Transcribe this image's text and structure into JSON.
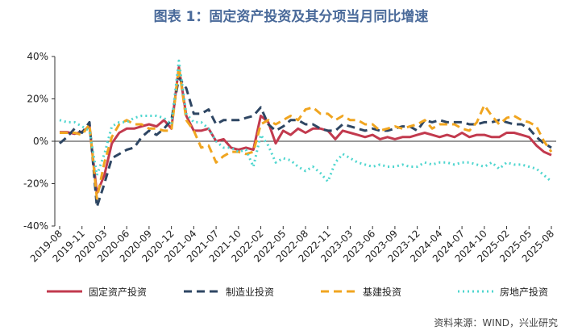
{
  "chart_data": {
    "type": "line",
    "title": "图表 1：固定资产投资及其分项当月同比增速",
    "source": "资料来源：WIND，兴业研究",
    "categories": [
      "2019-08",
      null,
      null,
      "2019-11",
      null,
      null,
      "2020-03",
      null,
      null,
      "2020-06",
      null,
      null,
      "2020-09",
      null,
      null,
      "2020-12",
      null,
      null,
      "2021-04",
      null,
      null,
      "2021-07",
      null,
      null,
      "2021-10",
      null,
      null,
      "2022-02",
      null,
      null,
      "2022-05",
      null,
      null,
      "2022-08",
      null,
      null,
      "2022-11",
      null,
      null,
      "2023-03",
      null,
      null,
      "2023-06",
      null,
      null,
      "2023-09",
      null,
      null,
      "2023-12",
      null,
      null,
      "2024-04",
      null,
      null,
      "2024-07",
      null,
      null,
      "2024-10",
      null,
      null,
      "2025-02",
      null,
      null,
      "2025-05",
      null,
      null,
      "2025-08"
    ],
    "series": [
      {
        "name": "固定资产投资",
        "color": "#c23a4e",
        "line_style": "solid",
        "values": [
          4.3,
          4.3,
          3.5,
          4.5,
          7,
          -24.5,
          -16,
          -1,
          4,
          6,
          6,
          7,
          8,
          7,
          10,
          6,
          35,
          12,
          5,
          5,
          6,
          0,
          1,
          -3,
          -4,
          -3,
          -4,
          12,
          9,
          -1,
          5,
          3,
          6,
          4,
          6,
          6,
          5,
          1,
          5,
          4,
          3,
          2,
          3,
          1,
          2,
          1,
          2,
          2,
          3,
          4,
          3,
          2,
          3,
          2,
          4,
          2,
          3,
          3,
          2,
          2,
          4,
          4,
          3,
          2,
          -2,
          -5,
          -6.5
        ]
      },
      {
        "name": "制造业投资",
        "color": "#2e4663",
        "line_style": "dashed",
        "values": [
          -1,
          2,
          6,
          4,
          9,
          -31,
          -20,
          -8,
          -6,
          -4,
          -3,
          2,
          5,
          3,
          6,
          10,
          30,
          25,
          13,
          13,
          15,
          8,
          10,
          10,
          10,
          11,
          12,
          16,
          8,
          5,
          7,
          10,
          10,
          8,
          8,
          6,
          5,
          5,
          8,
          7,
          6,
          5,
          6,
          5,
          5,
          6,
          7,
          7,
          5,
          10,
          9,
          10,
          9,
          9,
          9,
          8,
          8,
          9,
          9,
          10,
          9,
          8,
          8,
          6,
          2,
          -1,
          -3
        ]
      },
      {
        "name": "基建投资",
        "color": "#f0a520",
        "line_style": "dashed",
        "values": [
          4,
          4,
          4,
          3,
          8,
          -27,
          -10,
          2,
          8,
          10,
          8,
          8,
          6,
          6,
          5,
          5,
          35,
          10,
          5,
          -3,
          -2,
          -10,
          -7,
          -5,
          -5,
          -6,
          -5,
          8,
          10,
          8,
          10,
          12,
          10,
          15,
          16,
          13,
          13,
          10,
          12,
          10,
          10,
          8,
          8,
          5,
          6,
          7,
          6,
          7,
          8,
          10,
          6,
          8,
          8,
          8,
          6,
          5,
          9,
          17,
          12,
          8,
          11,
          12,
          10,
          9,
          7,
          0,
          -5
        ]
      },
      {
        "name": "房地产投资",
        "color": "#4fd6cf",
        "line_style": "dotted",
        "values": [
          10,
          9,
          9,
          7,
          5,
          -16,
          -6,
          7,
          9,
          9,
          11,
          12,
          12,
          12,
          11,
          8,
          38,
          13,
          9,
          9,
          6,
          0,
          -3,
          -3,
          -5,
          -4,
          -12,
          3,
          -2,
          -10,
          -8,
          -9,
          -12,
          -14,
          -12,
          -15,
          -19,
          -10,
          -6,
          -8,
          -10,
          -11,
          -12,
          -11,
          -12,
          -12,
          -11,
          -12,
          -12,
          -10,
          -11,
          -10,
          -10,
          -11,
          -10,
          -10,
          -11,
          -12,
          -10,
          -13,
          -10,
          -11,
          -11,
          -12,
          -13,
          -16,
          -19
        ]
      }
    ],
    "ylim": [
      -40,
      40
    ],
    "yticks": [
      {
        "value": -40,
        "label": "-40%"
      },
      {
        "value": -20,
        "label": "-20%"
      },
      {
        "value": 0,
        "label": "0%"
      },
      {
        "value": 20,
        "label": "20%"
      },
      {
        "value": 40,
        "label": "40%"
      }
    ],
    "legend": "bottom"
  }
}
